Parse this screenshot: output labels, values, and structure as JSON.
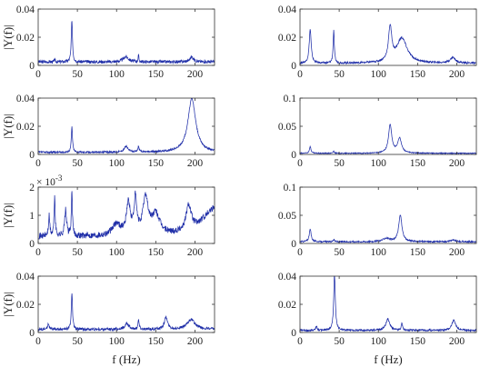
{
  "figure": {
    "xlabel": "f (Hz)",
    "ylabel": "|Y(f)|"
  },
  "chart_data": [
    {
      "type": "line",
      "position": "row1-left",
      "xlim": [
        0,
        225
      ],
      "ylim": [
        0,
        0.04
      ],
      "xticks": [
        "0",
        "50",
        "100",
        "150",
        "200"
      ],
      "yticks": [
        "0",
        "0.02",
        "0.04"
      ],
      "ylabel": "|Y(f)|",
      "xlabel": "",
      "exponent": "",
      "series": [
        {
          "color": "#1f2ea8",
          "baseline": 0.0025,
          "peaks": [
            {
              "f": 43,
              "amp": 0.03,
              "w": 0.9
            },
            {
              "f": 21,
              "amp": 0.0016,
              "w": 0.7
            },
            {
              "f": 112,
              "amp": 0.0038,
              "w": 4
            },
            {
              "f": 128,
              "amp": 0.0045,
              "w": 0.6
            },
            {
              "f": 196,
              "amp": 0.0035,
              "w": 3
            }
          ]
        }
      ]
    },
    {
      "type": "line",
      "position": "row1-right",
      "xlim": [
        0,
        225
      ],
      "ylim": [
        0,
        0.04
      ],
      "xticks": [
        "0",
        "50",
        "100",
        "150",
        "200"
      ],
      "yticks": [
        "0",
        "0.02",
        "0.04"
      ],
      "ylabel": "",
      "xlabel": "",
      "exponent": "",
      "series": [
        {
          "color": "#1f2ea8",
          "baseline": 0.0015,
          "peaks": [
            {
              "f": 13,
              "amp": 0.024,
              "w": 1.5
            },
            {
              "f": 43,
              "amp": 0.023,
              "w": 0.9
            },
            {
              "f": 115,
              "amp": 0.024,
              "w": 2.5
            },
            {
              "f": 130,
              "amp": 0.0175,
              "w": 8
            },
            {
              "f": 195,
              "amp": 0.004,
              "w": 4
            }
          ]
        }
      ]
    },
    {
      "type": "line",
      "position": "row2-left",
      "xlim": [
        0,
        225
      ],
      "ylim": [
        0,
        0.04
      ],
      "xticks": [
        "0",
        "50",
        "100",
        "150",
        "200"
      ],
      "yticks": [
        "0",
        "0.02",
        "0.04"
      ],
      "ylabel": "|Y(f)|",
      "xlabel": "",
      "exponent": "",
      "series": [
        {
          "color": "#1f2ea8",
          "baseline": 0.0015,
          "peaks": [
            {
              "f": 43,
              "amp": 0.018,
              "w": 0.9
            },
            {
              "f": 112,
              "amp": 0.004,
              "w": 3
            },
            {
              "f": 128,
              "amp": 0.004,
              "w": 1
            },
            {
              "f": 196,
              "amp": 0.038,
              "w": 6
            }
          ]
        }
      ]
    },
    {
      "type": "line",
      "position": "row2-right",
      "xlim": [
        0,
        225
      ],
      "ylim": [
        0,
        0.1
      ],
      "xticks": [
        "0",
        "50",
        "100",
        "150",
        "200"
      ],
      "yticks": [
        "0",
        "0.05",
        "0.1"
      ],
      "ylabel": "",
      "xlabel": "",
      "exponent": "",
      "series": [
        {
          "color": "#1f2ea8",
          "baseline": 0.002,
          "peaks": [
            {
              "f": 13,
              "amp": 0.012,
              "w": 1.2
            },
            {
              "f": 43,
              "amp": 0.004,
              "w": 0.9
            },
            {
              "f": 115,
              "amp": 0.05,
              "w": 2.5
            },
            {
              "f": 127,
              "amp": 0.026,
              "w": 3
            }
          ]
        }
      ]
    },
    {
      "type": "line",
      "position": "row3-left",
      "xlim": [
        0,
        225
      ],
      "ylim": [
        0,
        2
      ],
      "xticks": [
        "0",
        "50",
        "100",
        "150",
        "200"
      ],
      "yticks": [
        "0",
        "1",
        "2"
      ],
      "ylabel": "|Y(f)|",
      "xlabel": "",
      "exponent": "× 10",
      "exponent_power": "-3",
      "series": [
        {
          "color": "#1f2ea8",
          "baseline": 0.25,
          "peaks": [
            {
              "f": 14,
              "amp": 0.7,
              "w": 1
            },
            {
              "f": 21,
              "amp": 1.4,
              "w": 0.8
            },
            {
              "f": 35,
              "amp": 0.9,
              "w": 1.5
            },
            {
              "f": 43,
              "amp": 1.55,
              "w": 0.8
            },
            {
              "f": 100,
              "amp": 0.4,
              "w": 6
            },
            {
              "f": 115,
              "amp": 1.1,
              "w": 3
            },
            {
              "f": 124,
              "amp": 1.2,
              "w": 2
            },
            {
              "f": 137,
              "amp": 1.3,
              "w": 4
            },
            {
              "f": 150,
              "amp": 0.7,
              "w": 6
            },
            {
              "f": 192,
              "amp": 0.9,
              "w": 4
            },
            {
              "f": 225,
              "amp": 1.0,
              "w": 18
            }
          ]
        }
      ]
    },
    {
      "type": "line",
      "position": "row3-right",
      "xlim": [
        0,
        225
      ],
      "ylim": [
        0,
        0.1
      ],
      "xticks": [
        "0",
        "50",
        "100",
        "150",
        "200"
      ],
      "yticks": [
        "0",
        "0.05",
        "0.1"
      ],
      "ylabel": "",
      "xlabel": "",
      "exponent": "",
      "series": [
        {
          "color": "#1f2ea8",
          "baseline": 0.003,
          "peaks": [
            {
              "f": 13,
              "amp": 0.022,
              "w": 1.5
            },
            {
              "f": 43,
              "amp": 0.004,
              "w": 1
            },
            {
              "f": 110,
              "amp": 0.006,
              "w": 5
            },
            {
              "f": 128,
              "amp": 0.047,
              "w": 2.5
            },
            {
              "f": 195,
              "amp": 0.003,
              "w": 4
            }
          ]
        }
      ]
    },
    {
      "type": "line",
      "position": "row4-left",
      "xlim": [
        0,
        225
      ],
      "ylim": [
        0,
        0.04
      ],
      "xticks": [
        "0",
        "50",
        "100",
        "150",
        "200"
      ],
      "yticks": [
        "0",
        "0.02",
        "0.04"
      ],
      "ylabel": "|Y(f)|",
      "xlabel": "f (Hz)",
      "exponent": "",
      "series": [
        {
          "color": "#1f2ea8",
          "baseline": 0.0022,
          "peaks": [
            {
              "f": 13,
              "amp": 0.004,
              "w": 1.2
            },
            {
              "f": 43,
              "amp": 0.026,
              "w": 0.9
            },
            {
              "f": 113,
              "amp": 0.004,
              "w": 3
            },
            {
              "f": 128,
              "amp": 0.0065,
              "w": 1
            },
            {
              "f": 163,
              "amp": 0.0085,
              "w": 2.5
            },
            {
              "f": 195,
              "amp": 0.007,
              "w": 6
            }
          ]
        }
      ]
    },
    {
      "type": "line",
      "position": "row4-right",
      "xlim": [
        0,
        225
      ],
      "ylim": [
        0,
        0.04
      ],
      "xticks": [
        "0",
        "50",
        "100",
        "150",
        "200"
      ],
      "yticks": [
        "0",
        "0.02",
        "0.04"
      ],
      "ylabel": "",
      "xlabel": "f (Hz)",
      "exponent": "",
      "series": [
        {
          "color": "#1f2ea8",
          "baseline": 0.0015,
          "peaks": [
            {
              "f": 21,
              "amp": 0.003,
              "w": 1
            },
            {
              "f": 44,
              "amp": 0.04,
              "w": 1.2
            },
            {
              "f": 112,
              "amp": 0.008,
              "w": 3
            },
            {
              "f": 130,
              "amp": 0.005,
              "w": 1
            },
            {
              "f": 196,
              "amp": 0.007,
              "w": 3
            }
          ]
        }
      ]
    }
  ]
}
